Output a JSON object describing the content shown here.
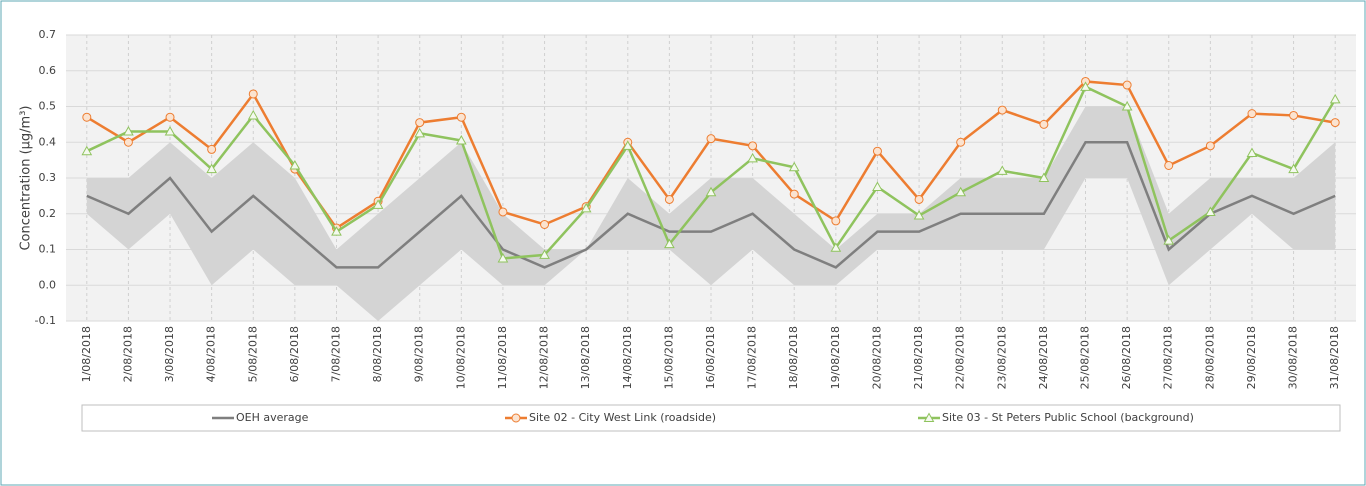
{
  "chart_data": {
    "type": "line",
    "y_label": "Concentration (µg/m³)",
    "categories": [
      "1/08/2018",
      "2/08/2018",
      "3/08/2018",
      "4/08/2018",
      "5/08/2018",
      "6/08/2018",
      "7/08/2018",
      "8/08/2018",
      "9/08/2018",
      "10/08/2018",
      "11/08/2018",
      "12/08/2018",
      "13/08/2018",
      "14/08/2018",
      "15/08/2018",
      "16/08/2018",
      "17/08/2018",
      "18/08/2018",
      "19/08/2018",
      "20/08/2018",
      "21/08/2018",
      "22/08/2018",
      "23/08/2018",
      "24/08/2018",
      "25/08/2018",
      "26/08/2018",
      "27/08/2018",
      "28/08/2018",
      "29/08/2018",
      "30/08/2018",
      "31/08/2018"
    ],
    "range": {
      "color": "#d4d4d4",
      "low": [
        0.2,
        0.1,
        0.2,
        0.0,
        0.1,
        0.0,
        0.0,
        -0.1,
        0.0,
        0.1,
        0.0,
        0.0,
        0.1,
        0.1,
        0.1,
        0.0,
        0.1,
        0.0,
        0.0,
        0.1,
        0.1,
        0.1,
        0.1,
        0.1,
        0.3,
        0.3,
        0.0,
        0.1,
        0.2,
        0.1,
        0.1
      ],
      "high": [
        0.3,
        0.3,
        0.4,
        0.3,
        0.4,
        0.3,
        0.1,
        0.2,
        0.3,
        0.4,
        0.2,
        0.1,
        0.1,
        0.3,
        0.2,
        0.3,
        0.3,
        0.2,
        0.1,
        0.2,
        0.2,
        0.3,
        0.3,
        0.3,
        0.5,
        0.5,
        0.2,
        0.3,
        0.3,
        0.3,
        0.4
      ]
    },
    "series": [
      {
        "name": "OEH average",
        "color": "#7f7f7f",
        "marker": "none",
        "values": [
          0.25,
          0.2,
          0.3,
          0.15,
          0.25,
          0.15,
          0.05,
          0.05,
          0.15,
          0.25,
          0.1,
          0.05,
          0.1,
          0.2,
          0.15,
          0.15,
          0.2,
          0.1,
          0.05,
          0.15,
          0.15,
          0.2,
          0.2,
          0.2,
          0.4,
          0.4,
          0.1,
          0.2,
          0.25,
          0.2,
          0.25
        ]
      },
      {
        "name": "Site 02 - City West Link (roadside)",
        "color": "#ed7d31",
        "marker": "circle",
        "values": [
          0.47,
          0.4,
          0.47,
          0.38,
          0.535,
          0.325,
          0.16,
          0.235,
          0.455,
          0.47,
          0.205,
          0.17,
          0.22,
          0.4,
          0.24,
          0.41,
          0.39,
          0.255,
          0.18,
          0.375,
          0.24,
          0.4,
          0.49,
          0.45,
          0.57,
          0.56,
          0.335,
          0.39,
          0.48,
          0.475,
          0.455
        ]
      },
      {
        "name": "Site 03 - St Peters Public School (background)",
        "color": "#8fc35e",
        "marker": "triangle",
        "values": [
          0.375,
          0.43,
          0.43,
          0.325,
          0.475,
          0.335,
          0.15,
          0.225,
          0.425,
          0.405,
          0.075,
          0.085,
          0.215,
          0.39,
          0.115,
          0.26,
          0.355,
          0.33,
          0.105,
          0.275,
          0.195,
          0.26,
          0.32,
          0.3,
          0.555,
          0.5,
          0.125,
          0.205,
          0.37,
          0.325,
          0.52
        ]
      }
    ],
    "ylim": [
      -0.1,
      0.7
    ],
    "yticks": [
      0.7,
      0.6,
      0.5,
      0.4,
      0.3,
      0.2,
      0.1,
      {
        "value": 0,
        "label": "0.0"
      },
      -0.1
    ],
    "grid": true
  }
}
